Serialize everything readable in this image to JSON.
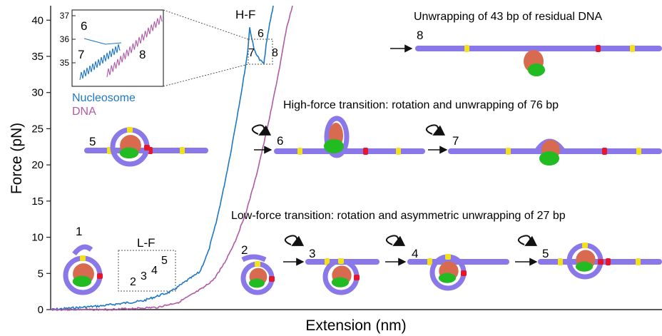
{
  "chart_data": {
    "type": "line",
    "xlabel": "Extension (nm)",
    "ylabel": "Force (pN)",
    "ylim": [
      0,
      42
    ],
    "yticks": [
      0,
      5,
      10,
      15,
      20,
      25,
      30,
      35,
      40
    ],
    "grid": false,
    "x_tick_labels_shown": false,
    "series": [
      {
        "name": "Nucleosome",
        "color": "#1f77c4",
        "y": [
          0,
          0.5,
          1.2,
          2.5,
          4.0,
          5.2,
          8.0,
          12.0,
          16.5,
          21.5,
          26.5,
          31.0,
          35.5,
          39.0,
          36.0,
          34.5,
          34.0,
          36.5,
          39.5,
          42.0
        ]
      },
      {
        "name": "DNA",
        "color": "#b05aa6",
        "y": [
          0,
          0,
          0.3,
          1.0,
          2.0,
          3.0,
          4.2,
          6.5,
          9.5,
          13.5,
          18.0,
          23.0,
          28.0,
          33.5,
          39.0,
          42.0
        ]
      }
    ],
    "annotations": {
      "hf_label": "H-F",
      "lf_label": "L-F",
      "hf_states": [
        "6",
        "7",
        "8"
      ],
      "lf_states": [
        "2",
        "3",
        "4",
        "5"
      ],
      "curve_start_state": "1",
      "inset": {
        "yticks": [
          35,
          36,
          37
        ],
        "states": [
          "6",
          "7",
          "8"
        ],
        "legend": [
          "Nucleosome",
          "DNA"
        ]
      },
      "panels": [
        {
          "state": "8",
          "title": "Unwrapping of 43 bp of residual DNA"
        },
        {
          "states": [
            "5",
            "6",
            "7"
          ],
          "title": "High-force transition: rotation and unwrapping of  76 bp"
        },
        {
          "states": [
            "2",
            "3",
            "4",
            "5"
          ],
          "title": "Low-force transition: rotation and asymmetric unwrapping of 27 bp"
        }
      ]
    },
    "colors": {
      "dna": "#8a78e8",
      "dna_dark": "#6a56c8",
      "histone": "#d86a50",
      "histone_tail": "#22bb22",
      "marker_yellow": "#f2e21c",
      "marker_red": "#e8142a"
    }
  }
}
